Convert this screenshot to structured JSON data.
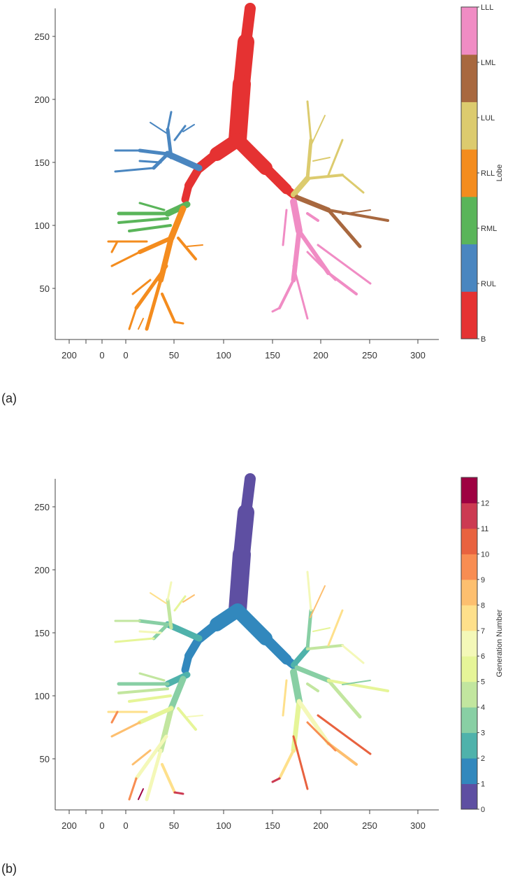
{
  "panels": [
    {
      "label": "(a)",
      "chart_data": {
        "type": "tree",
        "xticks": [
          "200",
          "0",
          "0",
          "50",
          "100",
          "150",
          "200",
          "250",
          "300"
        ],
        "yticks": [
          "50",
          "100",
          "150",
          "200",
          "250"
        ],
        "colorbar": {
          "title": "Lobe",
          "labels": [
            "B",
            "RUL",
            "RML",
            "RLL",
            "LUL",
            "LML",
            "LLL"
          ],
          "colors": [
            "#e53232",
            "#4a86c0",
            "#5ab55a",
            "#f48c1e",
            "#dccb6e",
            "#a8683f",
            "#f08cc4"
          ]
        }
      }
    },
    {
      "label": "(b)",
      "chart_data": {
        "type": "tree",
        "xticks": [
          "200",
          "0",
          "0",
          "50",
          "100",
          "150",
          "200",
          "250",
          "300"
        ],
        "yticks": [
          "50",
          "100",
          "150",
          "200",
          "250"
        ],
        "colorbar": {
          "title": "Generation Number",
          "labels": [
            "0",
            "1",
            "2",
            "3",
            "4",
            "5",
            "6",
            "7",
            "8",
            "9",
            "10",
            "11",
            "12"
          ],
          "colors": [
            "#5e4fa2",
            "#3288bd",
            "#4fb2ab",
            "#88cfa4",
            "#c2e69f",
            "#e6f598",
            "#f4f8b8",
            "#fee08b",
            "#fdbf6f",
            "#f88d52",
            "#e8623f",
            "#cc3a52",
            "#9e0142"
          ]
        }
      }
    }
  ]
}
